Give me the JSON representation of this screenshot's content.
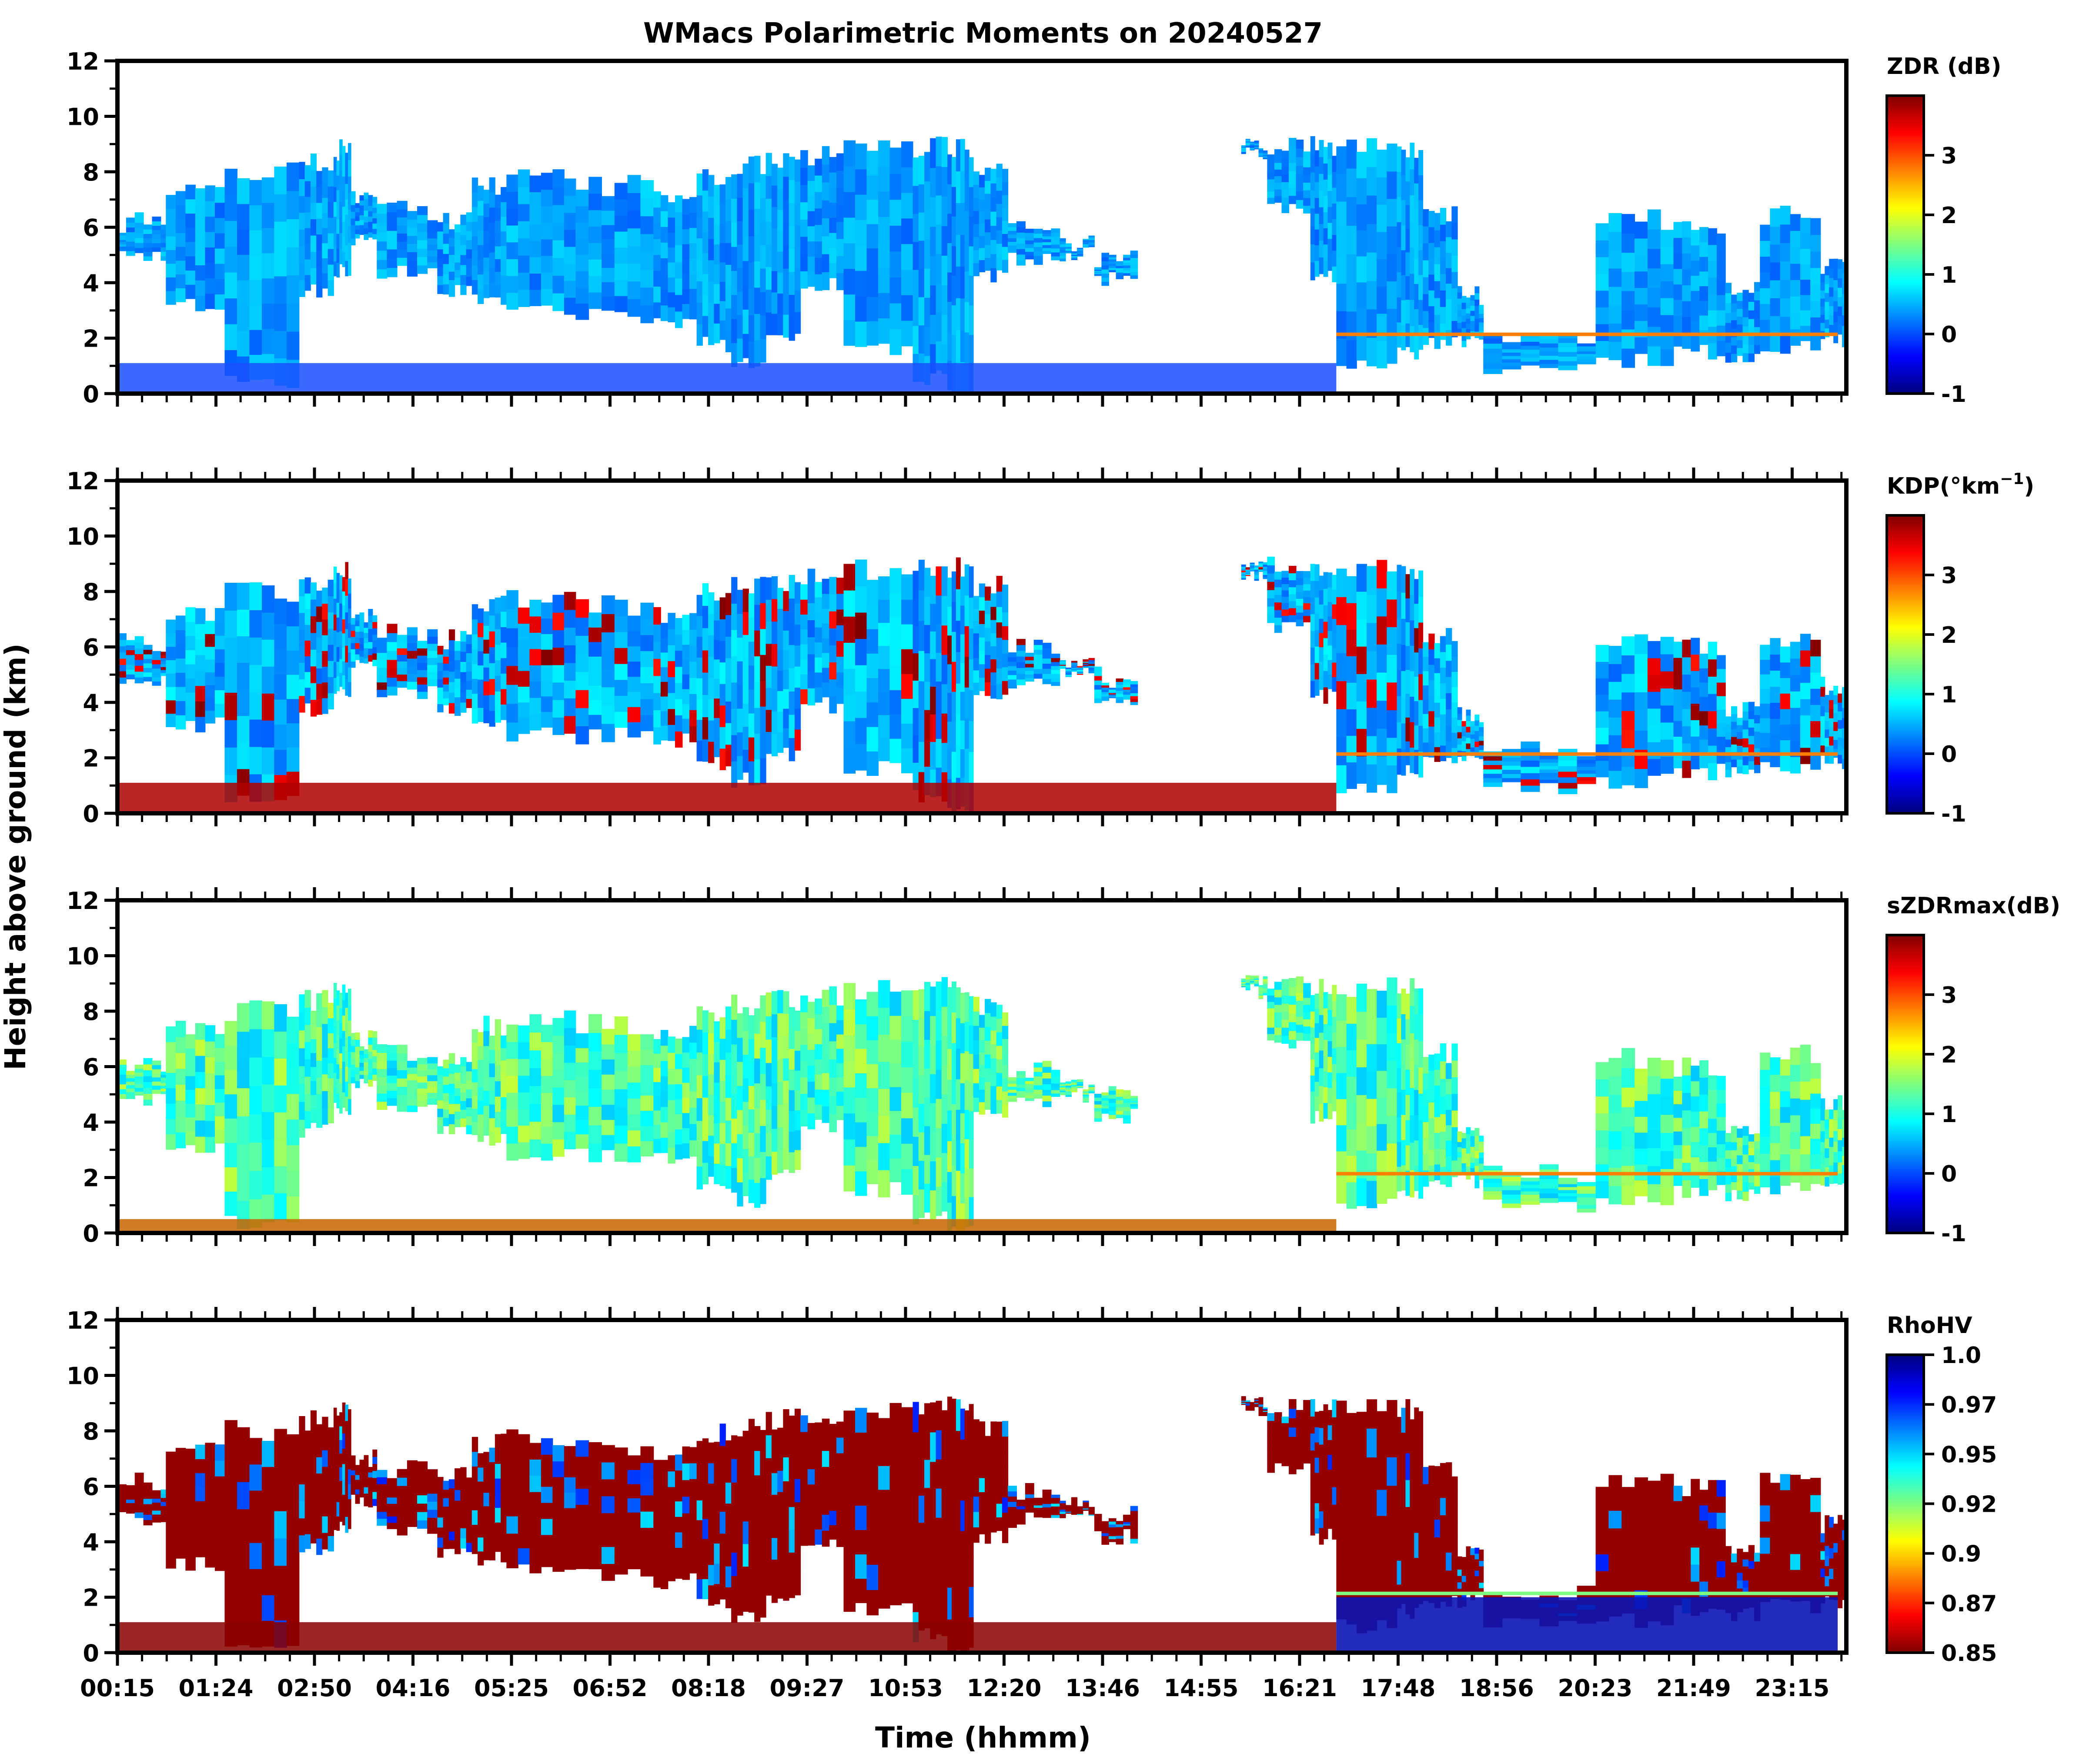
{
  "chart_data": {
    "type": "heatmap",
    "title": "WMacs Polarimetric Moments on 20240527",
    "xlabel": "Time (hhmm)",
    "ylabel": "Height above ground (km)",
    "xticks": [
      "00:15",
      "01:24",
      "02:50",
      "04:16",
      "05:25",
      "06:52",
      "08:18",
      "09:27",
      "10:53",
      "12:20",
      "13:46",
      "14:55",
      "16:21",
      "17:48",
      "18:56",
      "20:23",
      "21:49",
      "23:15"
    ],
    "ylim": [
      0,
      12
    ],
    "yticks": [
      "0",
      "2",
      "4",
      "6",
      "8",
      "10",
      "12"
    ],
    "panels": [
      {
        "name": "ZDR",
        "colorbar_label": "ZDR (dB)",
        "colormap": "jet",
        "range": [
          -1,
          4
        ],
        "colorbar_ticks": [
          "3",
          "2",
          "1",
          "0",
          "-1"
        ],
        "colorbar_tick_fracs": [
          0.8,
          0.6,
          0.4,
          0.2,
          0.0
        ]
      },
      {
        "name": "KDP",
        "colorbar_label": "KDP(°km",
        "colorbar_label_sup": "−1",
        "colorbar_label_end": ")",
        "colormap": "jet",
        "range": [
          -1,
          4
        ],
        "colorbar_ticks": [
          "3",
          "2",
          "1",
          "0",
          "-1"
        ],
        "colorbar_tick_fracs": [
          0.8,
          0.6,
          0.4,
          0.2,
          0.0
        ]
      },
      {
        "name": "sZDRmax",
        "colorbar_label": "sZDRmax(dB)",
        "colormap": "jet",
        "range": [
          -1,
          4
        ],
        "colorbar_ticks": [
          "3",
          "2",
          "1",
          "0",
          "-1"
        ],
        "colorbar_tick_fracs": [
          0.8,
          0.6,
          0.4,
          0.2,
          0.0
        ]
      },
      {
        "name": "RhoHV",
        "colorbar_label": "RhoHV",
        "colormap": "jet_r",
        "range": [
          0.85,
          1.0
        ],
        "colorbar_ticks": [
          "1.0",
          "0.97",
          "0.95",
          "0.92",
          "0.9",
          "0.87",
          "0.85"
        ],
        "colorbar_tick_fracs": [
          1.0,
          0.8333,
          0.6667,
          0.5,
          0.3333,
          0.1667,
          0.0
        ]
      }
    ]
  },
  "colors": {
    "background": "#ffffff",
    "jet": [
      "#00007f",
      "#0000ff",
      "#007fff",
      "#00ffff",
      "#7fff7f",
      "#ffff00",
      "#ff7f00",
      "#ff0000",
      "#7f0000"
    ]
  }
}
